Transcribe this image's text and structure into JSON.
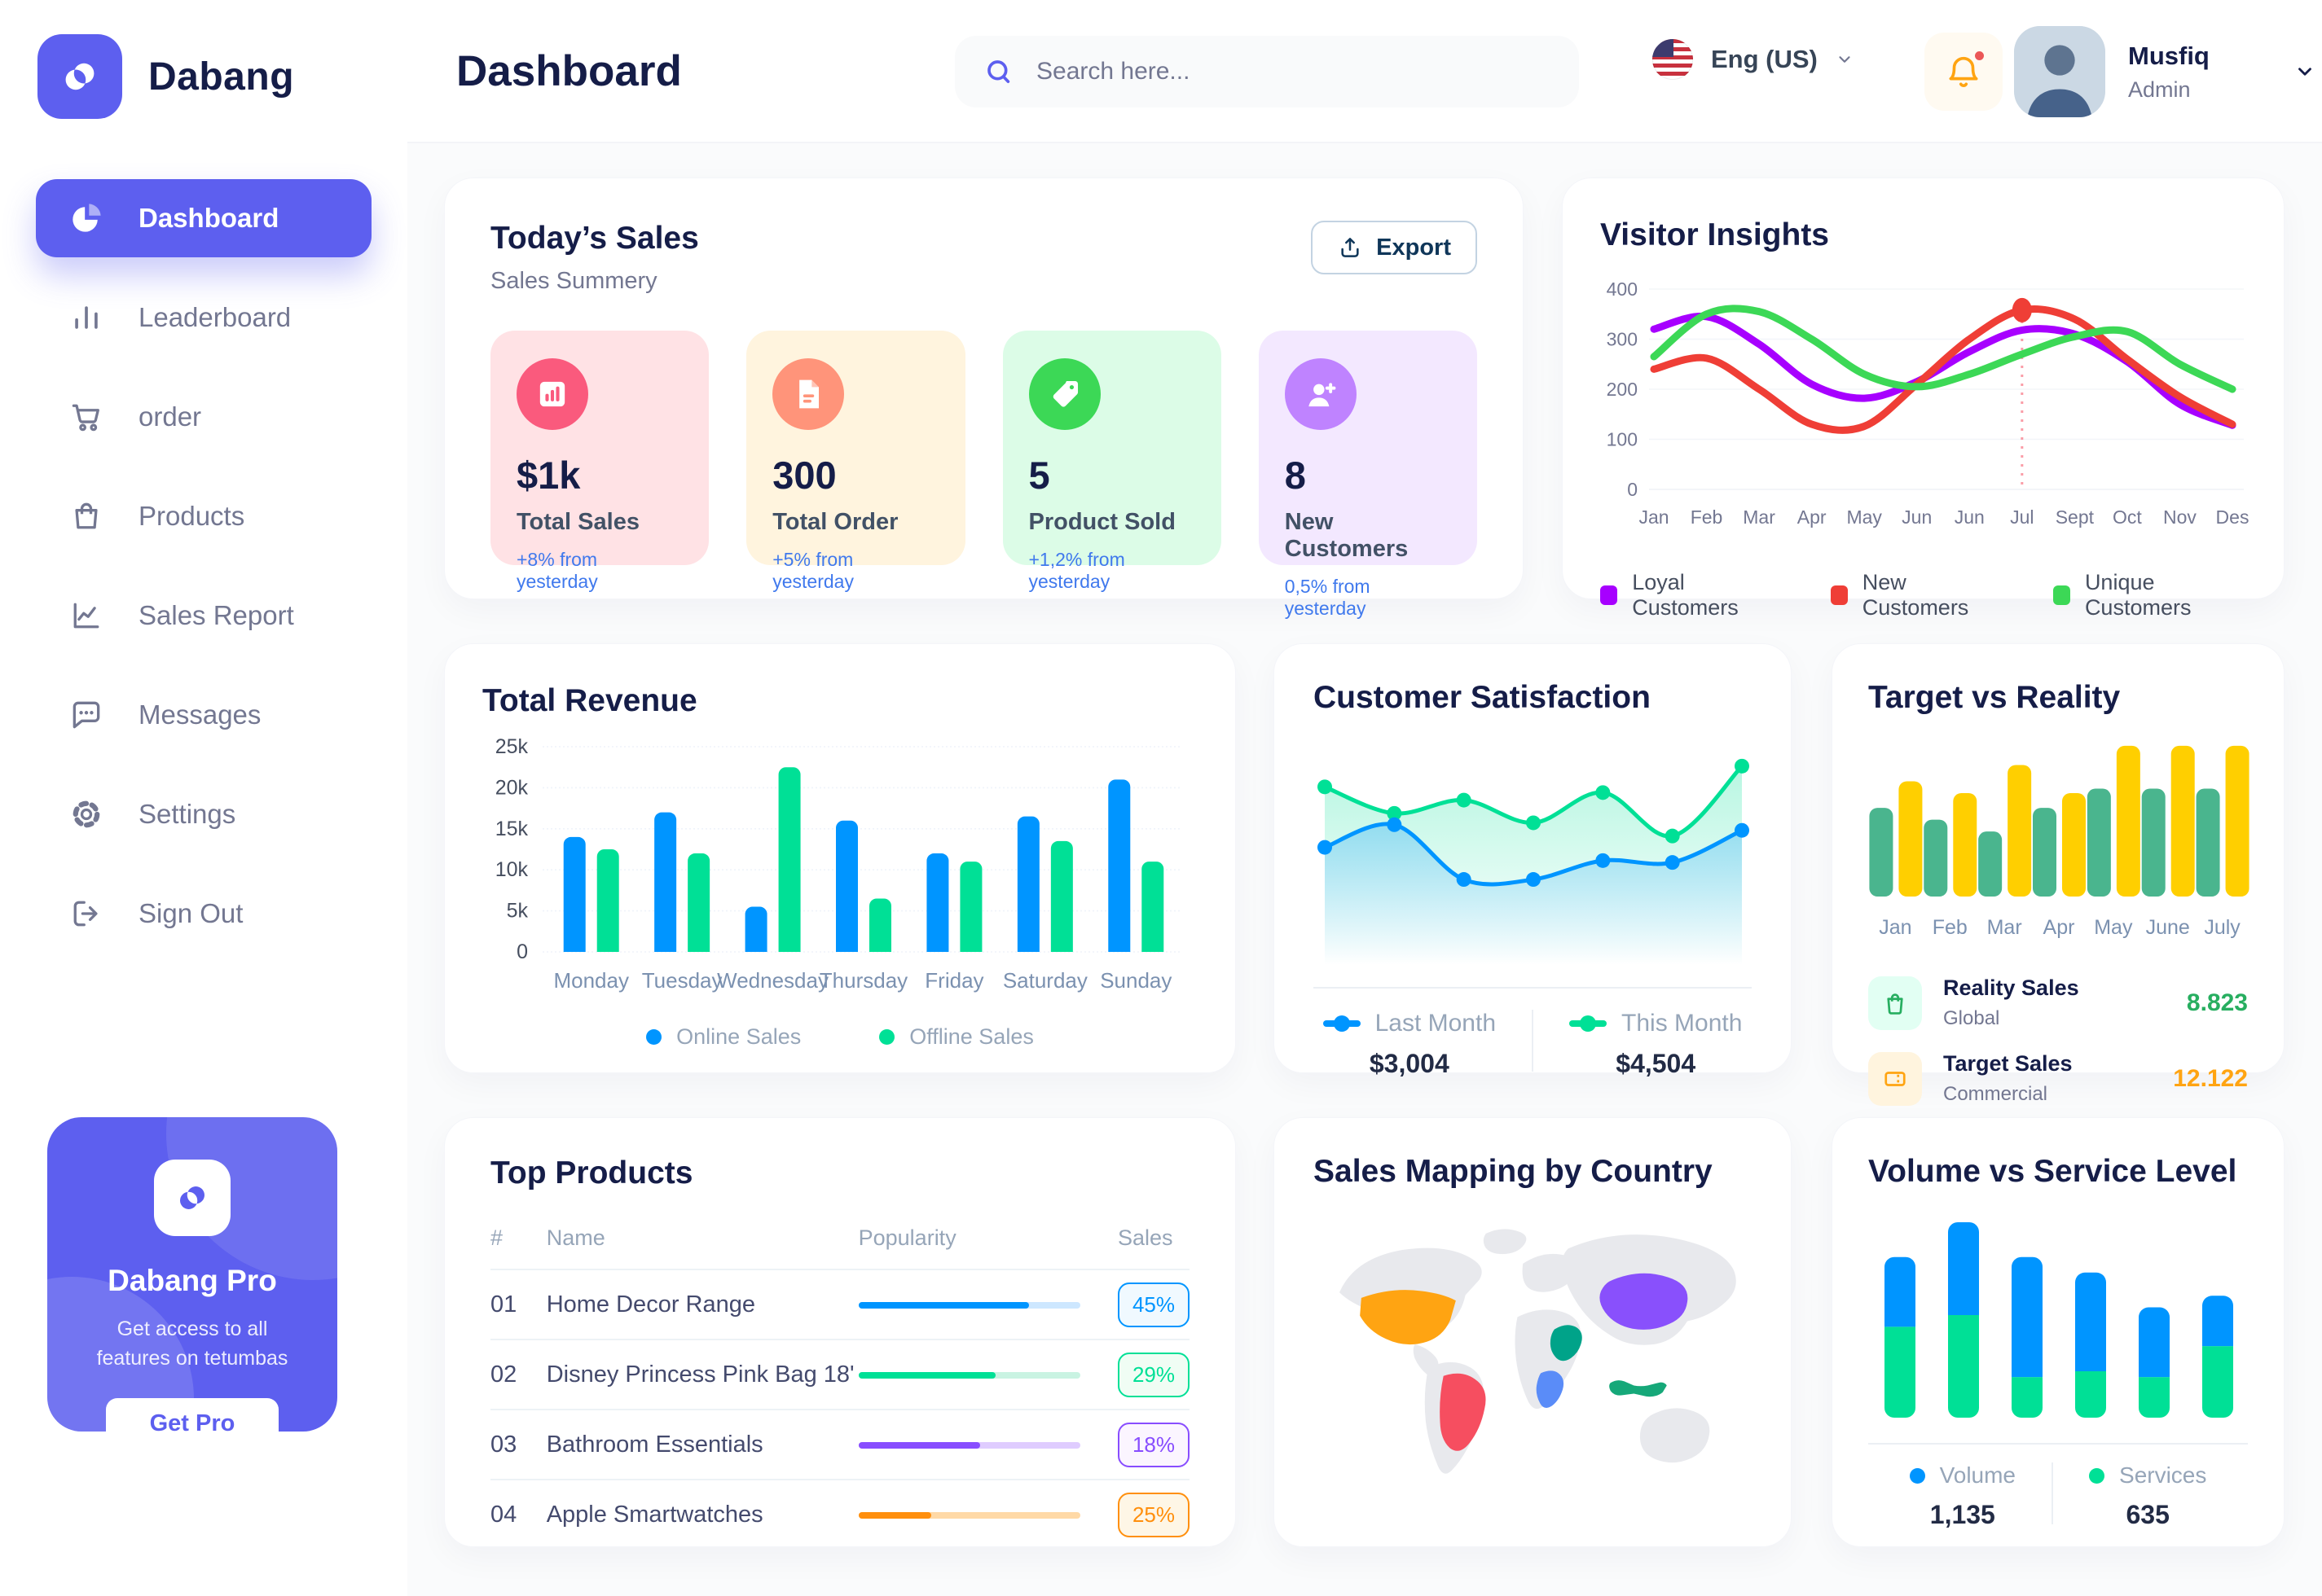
{
  "theme": {
    "primary": "#5D5FEF",
    "navy": "#151D48",
    "muted_text": "#737791",
    "legend_gray": "#96A5B8",
    "delta_blue": "#4079ED"
  },
  "app": {
    "brand": "Dabang"
  },
  "header": {
    "title": "Dashboard",
    "search_placeholder": "Search here...",
    "language": "Eng (US)",
    "user": {
      "name": "Musfiq",
      "role": "Admin"
    },
    "notification": {
      "has_unread": true
    }
  },
  "sidebar": {
    "items": [
      {
        "label": "Dashboard",
        "icon": "pie-chart",
        "active": true
      },
      {
        "label": "Leaderboard",
        "icon": "bar-chart",
        "active": false
      },
      {
        "label": "order",
        "icon": "cart",
        "active": false
      },
      {
        "label": "Products",
        "icon": "bag",
        "active": false
      },
      {
        "label": "Sales Report",
        "icon": "line-chart",
        "active": false
      },
      {
        "label": "Messages",
        "icon": "chat",
        "active": false
      },
      {
        "label": "Settings",
        "icon": "gear",
        "active": false
      },
      {
        "label": "Sign Out",
        "icon": "sign-out",
        "active": false
      }
    ],
    "pro": {
      "title": "Dabang Pro",
      "subtitle": "Get access to all features on tetumbas",
      "cta": "Get Pro"
    }
  },
  "panels": {
    "today_sales": {
      "title": "Today’s Sales",
      "subtitle": "Sales Summery",
      "export_label": "Export",
      "delta_color": "#4079ED",
      "cards": [
        {
          "value": "$1k",
          "label": "Total Sales",
          "delta": "+8% from yesterday",
          "bg": "#FFE2E5",
          "circle": "#FA5A7D",
          "icon": "bar-stats"
        },
        {
          "value": "300",
          "label": "Total Order",
          "delta": "+5% from yesterday",
          "bg": "#FFF4DE",
          "circle": "#FF947A",
          "icon": "order-file"
        },
        {
          "value": "5",
          "label": "Product Sold",
          "delta": "+1,2% from yesterday",
          "bg": "#DCFCE7",
          "circle": "#3CD856",
          "icon": "tag"
        },
        {
          "value": "8",
          "label": "New Customers",
          "delta": "0,5% from yesterday",
          "bg": "#F3E8FF",
          "circle": "#BF83FF",
          "icon": "user-plus"
        }
      ]
    }
  },
  "chart_data": [
    {
      "id": "visitor_insights",
      "type": "line",
      "title": "Visitor Insights",
      "x": [
        "Jan",
        "Feb",
        "Mar",
        "Apr",
        "May",
        "Jun",
        "Jun",
        "Jul",
        "Sept",
        "Oct",
        "Nov",
        "Des"
      ],
      "ylim": [
        0,
        400
      ],
      "yticks": [
        0,
        100,
        200,
        300,
        400
      ],
      "grid": true,
      "legend_position": "bottom",
      "marker": {
        "x_index": 7,
        "x_label": "Jul",
        "series": "New Customers",
        "value": 358,
        "style": "dashed-vertical-line"
      },
      "series": [
        {
          "name": "Loyal Customers",
          "color": "#A700FF",
          "values": [
            320,
            345,
            290,
            210,
            182,
            215,
            275,
            318,
            310,
            255,
            170,
            128
          ]
        },
        {
          "name": "New Customers",
          "color": "#EF3E36",
          "values": [
            240,
            262,
            200,
            130,
            126,
            210,
            300,
            358,
            340,
            260,
            185,
            130
          ]
        },
        {
          "name": "Unique Customers",
          "color": "#3CD856",
          "values": [
            265,
            350,
            355,
            300,
            230,
            205,
            230,
            270,
            305,
            315,
            250,
            200
          ]
        }
      ]
    },
    {
      "id": "total_revenue",
      "type": "bar",
      "title": "Total Revenue",
      "categories": [
        "Monday",
        "Tuesday",
        "Wednesday",
        "Thursday",
        "Friday",
        "Saturday",
        "Sunday"
      ],
      "ylim": [
        0,
        25
      ],
      "yticks": [
        "0",
        "5k",
        "10k",
        "15k",
        "20k",
        "25k"
      ],
      "grid": true,
      "legend_position": "bottom",
      "ylabel": "",
      "xlabel": "",
      "series": [
        {
          "name": "Online Sales",
          "color": "#0095FF",
          "values": [
            14,
            17,
            5.5,
            16,
            12,
            16.5,
            21
          ]
        },
        {
          "name": "Offline Sales",
          "color": "#00E096",
          "values": [
            12.5,
            12,
            22.5,
            6.5,
            11,
            13.5,
            11
          ]
        }
      ]
    },
    {
      "id": "customer_satisfaction",
      "type": "area",
      "title": "Customer Satisfaction",
      "x": [
        1,
        2,
        3,
        4,
        5,
        6,
        7
      ],
      "ylim": [
        0,
        100
      ],
      "grid": false,
      "legend_position": "bottom",
      "series": [
        {
          "name": "Last Month",
          "color": "#0095FF",
          "value_label": "$3,004",
          "values": [
            45,
            57,
            28,
            28,
            38,
            37,
            54
          ]
        },
        {
          "name": "This Month",
          "color": "#00E096",
          "value_label": "$4,504",
          "values": [
            77,
            63,
            70,
            58,
            74,
            51,
            88
          ]
        }
      ]
    },
    {
      "id": "target_vs_reality",
      "type": "bar",
      "title": "Target vs Reality",
      "categories": [
        "Jan",
        "Feb",
        "Mar",
        "Apr",
        "May",
        "June",
        "July"
      ],
      "ylim": [
        0,
        10.8
      ],
      "grid": false,
      "legend_position": "bottom",
      "series": [
        {
          "name": "Reality Sales",
          "subtitle": "Global",
          "color": "#4AB58E",
          "icon_bg": "#E2FFF3",
          "value_label": "8.823",
          "value_color": "#27AE60",
          "values": [
            6,
            5.2,
            4.4,
            6,
            7.3,
            7.3,
            7.3
          ]
        },
        {
          "name": "Target Sales",
          "subtitle": "Commercial",
          "color": "#FFCF00",
          "icon_bg": "#FFF4DE",
          "value_label": "12.122",
          "value_color": "#FFA412",
          "values": [
            7.8,
            7,
            8.9,
            7,
            10.2,
            10.2,
            10.2
          ]
        }
      ]
    },
    {
      "id": "top_products",
      "type": "table",
      "title": "Top Products",
      "columns": [
        "#",
        "Name",
        "Popularity",
        "Sales"
      ],
      "rows": [
        {
          "num": "01",
          "name": "Home Decor Range",
          "popularity": 77,
          "sales": "45%",
          "color": "#0095FF",
          "track": "#CDE7FF",
          "badge_bg": "#F0F9FF"
        },
        {
          "num": "02",
          "name": "Disney Princess Pink Bag 18'",
          "popularity": 62,
          "sales": "29%",
          "color": "#00E096",
          "track": "#C9F3E2",
          "badge_bg": "#F0FDF4"
        },
        {
          "num": "03",
          "name": "Bathroom Essentials",
          "popularity": 55,
          "sales": "18%",
          "color": "#884DFF",
          "track": "#DFCCFF",
          "badge_bg": "#FBF5FF"
        },
        {
          "num": "04",
          "name": "Apple Smartwatches",
          "popularity": 33,
          "sales": "25%",
          "color": "#FF8F0D",
          "track": "#FFD9A6",
          "badge_bg": "#FEF6E6"
        }
      ]
    },
    {
      "id": "sales_map",
      "type": "map",
      "title": "Sales Mapping by Country",
      "countries": [
        {
          "name": "United States",
          "color": "#FFA412"
        },
        {
          "name": "Brazil",
          "color": "#F64E60"
        },
        {
          "name": "Saudi Arabia",
          "color": "#00A389"
        },
        {
          "name": "DR Congo",
          "color": "#5A8CF8"
        },
        {
          "name": "China",
          "color": "#8950FC"
        },
        {
          "name": "Indonesia",
          "color": "#16A879"
        }
      ]
    },
    {
      "id": "volume_service",
      "type": "stacked-bar",
      "title": "Volume vs Service Level",
      "categories": [
        "1",
        "2",
        "3",
        "4",
        "5",
        "6"
      ],
      "grid": false,
      "legend_position": "bottom",
      "series": [
        {
          "name": "Volume",
          "color": "#0095FF",
          "total_label": "1,135",
          "values": [
            36,
            48,
            62,
            51,
            36,
            26
          ]
        },
        {
          "name": "Services",
          "color": "#00E096",
          "total_label": "635",
          "values": [
            47,
            53,
            21,
            24,
            21,
            37
          ]
        }
      ]
    }
  ]
}
